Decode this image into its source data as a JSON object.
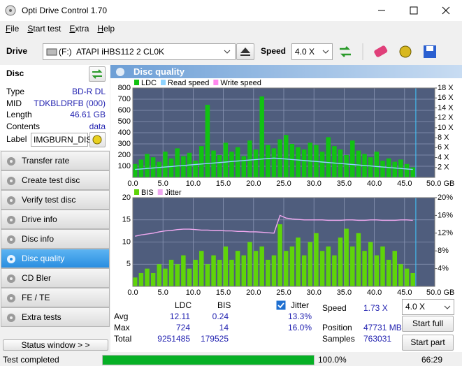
{
  "window": {
    "title": "Opti Drive Control 1.70"
  },
  "menu": [
    "File",
    "Start test",
    "Extra",
    "Help"
  ],
  "toolbar": {
    "drive_label": "Drive",
    "drive_letter": "(F:)",
    "drive_name": "ATAPI iHBS112  2 CL0K",
    "speed_label": "Speed",
    "speed_value": "4.0 X"
  },
  "disc": {
    "title": "Disc",
    "rows": [
      [
        "Type",
        "BD-R DL"
      ],
      [
        "MID",
        "TDKBLDRFB (000)"
      ],
      [
        "Length",
        "46.61 GB"
      ],
      [
        "Contents",
        "data"
      ]
    ],
    "label_key": "Label",
    "label_value": "IMGBURN_DIS"
  },
  "nav": [
    "Transfer rate",
    "Create test disc",
    "Verify test disc",
    "Drive info",
    "Disc info",
    "Disc quality",
    "CD Bler",
    "FE / TE",
    "Extra tests"
  ],
  "status_window": "Status window > >",
  "panel_title": "Disc quality",
  "chart_data": [
    {
      "type": "bar",
      "grid": true,
      "x": [
        0,
        1,
        2,
        3,
        4,
        5,
        6,
        7,
        8,
        9,
        10,
        11,
        12,
        13,
        14,
        15,
        16,
        17,
        18,
        19,
        20,
        21,
        22,
        23,
        24,
        25,
        26,
        27,
        28,
        29,
        30,
        31,
        32,
        33,
        34,
        35,
        36,
        37,
        38,
        39,
        40,
        41,
        42,
        43,
        44,
        45,
        46
      ],
      "xlim": [
        0,
        50
      ],
      "xticks": [
        {
          "value": 0,
          "label": "0.0"
        },
        {
          "value": 5,
          "label": "5.0"
        },
        {
          "value": 10,
          "label": "10.0"
        },
        {
          "value": 15,
          "label": "15.0"
        },
        {
          "value": 20,
          "label": "20.0"
        },
        {
          "value": 25,
          "label": "25.0"
        },
        {
          "value": 30,
          "label": "30.0"
        },
        {
          "value": 35,
          "label": "35.0"
        },
        {
          "value": 40,
          "label": "40.0"
        },
        {
          "value": 45,
          "label": "45.0"
        },
        {
          "value": 50,
          "label": "50.0 GB"
        }
      ],
      "ylim": [
        0,
        800
      ],
      "yticks": [
        100,
        200,
        300,
        400,
        500,
        600,
        700,
        800
      ],
      "y2lim": [
        0,
        18
      ],
      "y2ticks": [
        {
          "value": 2,
          "label": "2 X"
        },
        {
          "value": 4,
          "label": "4 X"
        },
        {
          "value": 6,
          "label": "6 X"
        },
        {
          "value": 8,
          "label": "8 X"
        },
        {
          "value": 10,
          "label": "10 X"
        },
        {
          "value": 12,
          "label": "12 X"
        },
        {
          "value": 14,
          "label": "14 X"
        },
        {
          "value": 16,
          "label": "16 X"
        },
        {
          "value": 18,
          "label": "18 X"
        }
      ],
      "series": [
        {
          "name": "LDC",
          "color": "#12c212",
          "type": "bar",
          "values": [
            120,
            160,
            210,
            180,
            140,
            230,
            170,
            260,
            190,
            220,
            150,
            280,
            650,
            240,
            200,
            310,
            230,
            270,
            190,
            330,
            250,
            724,
            290,
            260,
            340,
            380,
            300,
            270,
            250,
            310,
            290,
            230,
            360,
            280,
            250,
            200,
            330,
            240,
            210,
            180,
            230,
            150,
            170,
            140,
            160,
            120,
            90
          ]
        },
        {
          "name": "Read speed",
          "color": "#8fd4ff",
          "type": "line",
          "axis": "y2",
          "values": [
            1.6,
            1.7,
            1.8,
            1.9,
            2.0,
            2.1,
            2.2,
            2.3,
            2.4,
            2.5,
            2.6,
            2.7,
            2.8,
            2.9,
            3.0,
            3.1,
            3.2,
            3.3,
            3.4,
            3.5,
            3.6,
            3.7,
            3.8,
            3.9,
            3.8,
            3.7,
            3.6,
            3.5,
            3.4,
            3.3,
            3.2,
            3.1,
            3.0,
            2.9,
            2.8,
            2.7,
            2.6,
            2.5,
            2.4,
            2.3,
            2.2,
            2.1,
            2.0,
            1.9,
            1.8,
            1.7,
            1.6
          ]
        },
        {
          "name": "Write speed",
          "color": "#ff88ee",
          "type": "line",
          "axis": "y2",
          "values": [
            null,
            null,
            null,
            null,
            null,
            null,
            null,
            null,
            null,
            null,
            null,
            null,
            null,
            null,
            null,
            null,
            null,
            null,
            null,
            null,
            null,
            null,
            null,
            null,
            null,
            null,
            null,
            null,
            null,
            null,
            null,
            null,
            null,
            null,
            null,
            null,
            null,
            null,
            null,
            null,
            null,
            null,
            null,
            null,
            null,
            null,
            null
          ]
        }
      ]
    },
    {
      "type": "bar",
      "grid": true,
      "x": [
        0,
        1,
        2,
        3,
        4,
        5,
        6,
        7,
        8,
        9,
        10,
        11,
        12,
        13,
        14,
        15,
        16,
        17,
        18,
        19,
        20,
        21,
        22,
        23,
        24,
        25,
        26,
        27,
        28,
        29,
        30,
        31,
        32,
        33,
        34,
        35,
        36,
        37,
        38,
        39,
        40,
        41,
        42,
        43,
        44,
        45,
        46
      ],
      "xlim": [
        0,
        50
      ],
      "xticks": [
        {
          "value": 0,
          "label": "0.0"
        },
        {
          "value": 5,
          "label": "5.0"
        },
        {
          "value": 10,
          "label": "10.0"
        },
        {
          "value": 15,
          "label": "15.0"
        },
        {
          "value": 20,
          "label": "20.0"
        },
        {
          "value": 25,
          "label": "25.0"
        },
        {
          "value": 30,
          "label": "30.0"
        },
        {
          "value": 35,
          "label": "35.0"
        },
        {
          "value": 40,
          "label": "40.0"
        },
        {
          "value": 45,
          "label": "45.0"
        },
        {
          "value": 50,
          "label": "50.0 GB"
        }
      ],
      "ylim": [
        0,
        20
      ],
      "yticks": [
        5,
        10,
        15,
        20
      ],
      "y2lim": [
        0,
        20
      ],
      "y2ticks": [
        {
          "value": 4,
          "label": "4%"
        },
        {
          "value": 8,
          "label": "8%"
        },
        {
          "value": 12,
          "label": "12%"
        },
        {
          "value": 16,
          "label": "16%"
        },
        {
          "value": 20,
          "label": "20%"
        }
      ],
      "series": [
        {
          "name": "BIS",
          "color": "#5fd40a",
          "type": "bar",
          "values": [
            2,
            3,
            4,
            3,
            5,
            4,
            6,
            5,
            7,
            4,
            6,
            8,
            5,
            7,
            6,
            9,
            6,
            8,
            7,
            10,
            8,
            9,
            6,
            7,
            14,
            8,
            9,
            11,
            7,
            10,
            12,
            8,
            9,
            7,
            11,
            13,
            9,
            12,
            8,
            10,
            7,
            9,
            6,
            8,
            5,
            4,
            3
          ]
        },
        {
          "name": "Jitter",
          "color": "#f0a8f0",
          "type": "line",
          "axis": "y2",
          "values": [
            11.3,
            11.6,
            11.8,
            12.0,
            12.3,
            12.5,
            12.6,
            12.8,
            12.9,
            12.9,
            12.8,
            12.7,
            12.7,
            12.6,
            12.6,
            12.5,
            12.5,
            12.4,
            12.4,
            12.3,
            12.3,
            12.2,
            12.1,
            12.0,
            16.0,
            15.4,
            15.2,
            15.1,
            15.0,
            15.0,
            15.0,
            15.0,
            14.9,
            14.9,
            14.9,
            15.0,
            15.0,
            14.9,
            14.9,
            15.0,
            15.0,
            14.9,
            14.9,
            14.9,
            15.0,
            15.0,
            14.9
          ]
        }
      ]
    }
  ],
  "stats": {
    "headers": [
      "LDC",
      "BIS"
    ],
    "rows": [
      [
        "Avg",
        "12.11",
        "0.24"
      ],
      [
        "Max",
        "724",
        "14"
      ],
      [
        "Total",
        "9251485",
        "179525"
      ]
    ],
    "jitter_label": "Jitter",
    "jitter_values": [
      "13.3%",
      "16.0%"
    ],
    "speed_label": "Speed",
    "speed_value": "1.73 X",
    "speed_select": "4.0 X",
    "position_label": "Position",
    "position_value": "47731 MB",
    "samples_label": "Samples",
    "samples_value": "763031",
    "start_full": "Start full",
    "start_part": "Start part"
  },
  "status_bar": {
    "text": "Test completed",
    "progress": {
      "value": 100,
      "label": "100.0%"
    },
    "time": "66:29"
  }
}
